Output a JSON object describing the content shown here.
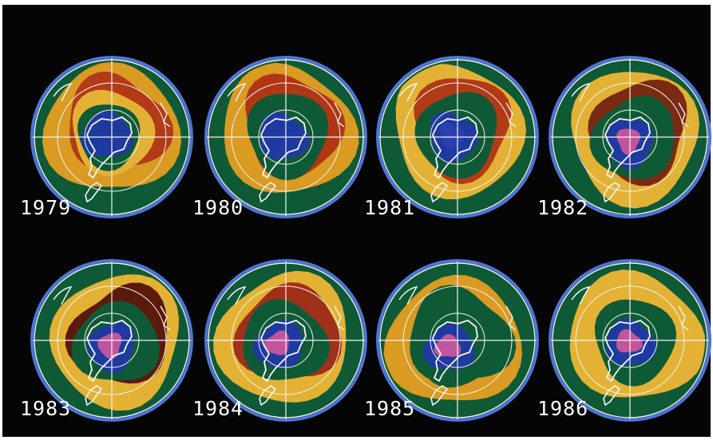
{
  "maps": [
    {
      "year": "1979",
      "colors": {
        "outer": "#0f5a36",
        "ring2": "#d99b22",
        "ring3": "#b23a17",
        "ring4": "#e3b235",
        "inner": "#1e3aa0",
        "core": "#1e3aa0"
      }
    },
    {
      "year": "1980",
      "colors": {
        "outer": "#0f5a36",
        "ring2": "#d99b22",
        "ring3": "#b03614",
        "ring4": "#0f5a36",
        "inner": "#1e3aa0",
        "core": "#1e3aa0"
      }
    },
    {
      "year": "1981",
      "colors": {
        "outer": "#0f5a36",
        "ring2": "#e3b235",
        "ring3": "#b23a17",
        "ring4": "#0f5a36",
        "inner": "#1e3aa0",
        "core": "#2a3fb0"
      }
    },
    {
      "year": "1982",
      "colors": {
        "outer": "#0f5a36",
        "ring2": "#e3b235",
        "ring3": "#7a2a12",
        "ring4": "#0f5a36",
        "inner": "#1e3aa0",
        "core": "#c0559c"
      }
    },
    {
      "year": "1983",
      "colors": {
        "outer": "#0f5a36",
        "ring2": "#e3b235",
        "ring3": "#5a1a0c",
        "ring4": "#0f5a36",
        "inner": "#1e3aa0",
        "core": "#c0559c"
      }
    },
    {
      "year": "1984",
      "colors": {
        "outer": "#0f5a36",
        "ring2": "#e3b235",
        "ring3": "#a1301a",
        "ring4": "#0f5a36",
        "inner": "#1e3aa0",
        "core": "#c0559c"
      }
    },
    {
      "year": "1985",
      "colors": {
        "outer": "#0f5a36",
        "ring2": "#d99b22",
        "ring3": "#0f5a36",
        "ring4": "#0f5a36",
        "inner": "#1e3aa0",
        "core": "#c0559c"
      }
    },
    {
      "year": "1986",
      "colors": {
        "outer": "#0f5a36",
        "ring2": "#e3b235",
        "ring3": "#e3b235",
        "ring4": "#0f5a36",
        "inner": "#1e3aa0",
        "core": "#c0559c"
      }
    }
  ],
  "colors": {
    "background": "#050505",
    "grid": "#f2f2f2",
    "coast": "#f7f7f7",
    "rim": "#4a76d6",
    "label": "#ffffff"
  }
}
